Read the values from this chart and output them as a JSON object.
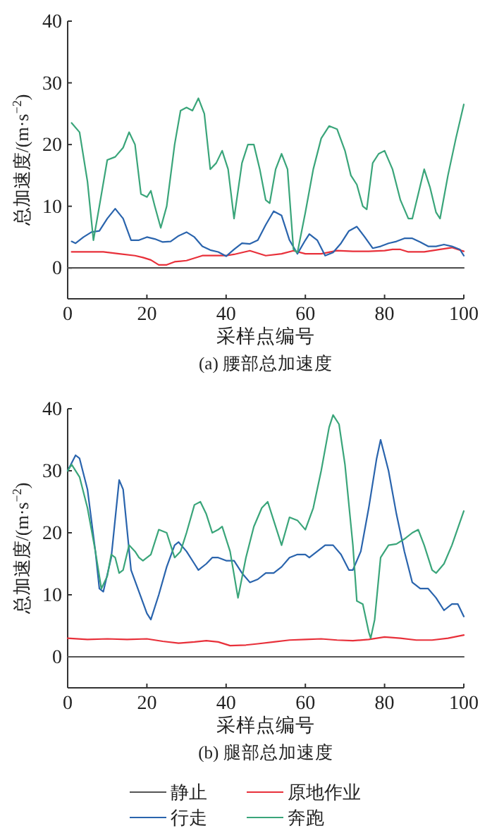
{
  "chart_data": [
    {
      "type": "line",
      "title": "(a) 腰部总加速度",
      "xlabel": "采样点编号",
      "ylabel": "总加速度/(m·s$^{−2}$)",
      "xlim": [
        0,
        100
      ],
      "xticks": [
        0,
        20,
        40,
        60,
        80,
        100
      ],
      "ylim": [
        -5,
        40
      ],
      "yticks": [
        0,
        10,
        20,
        30,
        40
      ],
      "legend": false,
      "series": [
        {
          "color": "#555555",
          "x": [
            0,
            25,
            50,
            75,
            100
          ],
          "values": [
            0,
            0,
            0,
            0,
            0
          ]
        },
        {
          "color": "#e8303a",
          "x": [
            1,
            5,
            9,
            13,
            17,
            19,
            21,
            23,
            25,
            27,
            30,
            34,
            38,
            40,
            42,
            46,
            50,
            54,
            57,
            60,
            64,
            68,
            72,
            76,
            80,
            82,
            84,
            86,
            90,
            94,
            97,
            100
          ],
          "values": [
            2.6,
            2.6,
            2.6,
            2.3,
            2,
            1.7,
            1.3,
            0.5,
            0.5,
            1,
            1.2,
            2,
            2,
            2,
            2.2,
            2.8,
            2,
            2.3,
            2.8,
            2.3,
            2.3,
            2.8,
            2.7,
            2.7,
            2.8,
            3,
            3,
            2.6,
            2.6,
            3,
            3.3,
            2.7
          ]
        },
        {
          "color": "#2a64ad",
          "x": [
            1,
            2,
            4,
            6,
            8,
            10,
            12,
            14,
            16,
            18,
            20,
            22,
            24,
            26,
            28,
            30,
            32,
            34,
            36,
            38,
            40,
            42,
            44,
            46,
            48,
            50,
            52,
            54,
            56,
            58,
            60,
            61,
            63,
            65,
            67,
            69,
            71,
            73,
            75,
            77,
            79,
            81,
            83,
            85,
            87,
            89,
            91,
            93,
            95,
            97,
            99,
            100
          ],
          "values": [
            4.3,
            4,
            5,
            5.8,
            6,
            8,
            9.6,
            8,
            4.5,
            4.5,
            5,
            4.7,
            4.2,
            4.3,
            5.2,
            5.8,
            5,
            3.5,
            2.9,
            2.6,
            1.9,
            3,
            4,
            3.9,
            4.5,
            7,
            9.2,
            8.5,
            4.5,
            2.3,
            4.5,
            5.5,
            4.5,
            2,
            2.5,
            4,
            6,
            6.7,
            5,
            3.2,
            3.5,
            4,
            4.3,
            4.8,
            4.8,
            4.2,
            3.5,
            3.5,
            3.8,
            3.5,
            3,
            2
          ]
        },
        {
          "color": "#3aa57a",
          "x": [
            1,
            3,
            5,
            6.5,
            8,
            10,
            12,
            14,
            15.5,
            17,
            18.5,
            20,
            21,
            22,
            23.5,
            25,
            27,
            28.5,
            30,
            31.5,
            33,
            34.5,
            36,
            37.5,
            39,
            40.5,
            42,
            44,
            45.5,
            47,
            48.5,
            50,
            51,
            52.5,
            54,
            55.5,
            57,
            58,
            60,
            62,
            64,
            66,
            68,
            70,
            71.5,
            73,
            74.5,
            75.5,
            77,
            78.5,
            80,
            82,
            84,
            86,
            87,
            88.5,
            90,
            91.5,
            93,
            94,
            96,
            98,
            100
          ],
          "values": [
            23.5,
            22,
            14,
            4.5,
            10,
            17.5,
            18,
            19.5,
            22,
            20,
            12,
            11.5,
            12.5,
            10,
            6.5,
            10,
            20,
            25.5,
            26,
            25.5,
            27.5,
            25,
            16,
            17,
            19,
            16,
            8,
            17,
            20,
            20,
            16,
            11,
            10.5,
            16,
            18.5,
            16,
            3,
            2.5,
            9,
            16,
            21,
            23,
            22.5,
            19,
            15,
            13.5,
            10,
            9.5,
            17,
            18.5,
            19,
            16,
            11,
            8,
            8,
            12,
            16,
            13,
            9,
            8,
            15,
            21,
            26.5
          ]
        }
      ]
    },
    {
      "type": "line",
      "title": "(b) 腿部总加速度",
      "xlabel": "采样点编号",
      "ylabel": "总加速度/(m·s$^{−2}$)",
      "xlim": [
        0,
        100
      ],
      "xticks": [
        0,
        20,
        40,
        60,
        80,
        100
      ],
      "ylim": [
        -5,
        40
      ],
      "yticks": [
        0,
        10,
        20,
        30,
        40
      ],
      "legend": "bottom",
      "series": [
        {
          "name": "静止",
          "color": "#555555",
          "x": [
            0,
            25,
            50,
            75,
            100
          ],
          "values": [
            0,
            0,
            0,
            0,
            0
          ]
        },
        {
          "name": "原地作业",
          "color": "#e8303a",
          "x": [
            0,
            5,
            10,
            15,
            20,
            24,
            28,
            32,
            35,
            38,
            41,
            45,
            48,
            52,
            56,
            60,
            64,
            68,
            72,
            76,
            80,
            84,
            88,
            92,
            96,
            100
          ],
          "values": [
            3,
            2.8,
            2.9,
            2.8,
            2.9,
            2.5,
            2.2,
            2.4,
            2.6,
            2.4,
            1.8,
            1.9,
            2.1,
            2.4,
            2.7,
            2.8,
            2.9,
            2.7,
            2.6,
            2.8,
            3.2,
            3,
            2.7,
            2.7,
            3,
            3.5
          ]
        },
        {
          "name": "行走",
          "color": "#2a64ad",
          "x": [
            0,
            2,
            3,
            5,
            7,
            8,
            9,
            11,
            13,
            14,
            16,
            18,
            20,
            21,
            23,
            25,
            27,
            28,
            30,
            32,
            33,
            35,
            36.5,
            38,
            40,
            42,
            44,
            46,
            48,
            50,
            52,
            54,
            56,
            58,
            60,
            61,
            63,
            65,
            67,
            69,
            71,
            72,
            74,
            76,
            78,
            79,
            81,
            83,
            85,
            87,
            89,
            91,
            93,
            95,
            97,
            98.5,
            100
          ],
          "values": [
            30,
            32.5,
            32,
            27,
            17,
            11,
            10.5,
            16,
            28.5,
            27,
            14,
            10.5,
            7,
            6,
            10,
            14.5,
            18,
            18.5,
            17,
            15,
            14,
            15,
            16,
            16,
            15.5,
            15.5,
            13.5,
            12,
            12.5,
            13.5,
            13.5,
            14.5,
            16,
            16.5,
            16.5,
            16,
            17,
            18,
            18,
            16.5,
            14,
            14,
            17,
            24,
            32,
            35,
            30,
            23,
            17,
            12,
            11,
            11,
            9.5,
            7.5,
            8.5,
            8.5,
            6.5
          ]
        },
        {
          "name": "奔跑",
          "color": "#3aa57a",
          "x": [
            0,
            1,
            3,
            5,
            7,
            8.5,
            10,
            11,
            12,
            13,
            14,
            15.5,
            17,
            18,
            19,
            21,
            23,
            25,
            27,
            28.5,
            30,
            32,
            33.5,
            35,
            36.5,
            38,
            39,
            41,
            43,
            45,
            47,
            49,
            50.5,
            52,
            54,
            56,
            58,
            60,
            62,
            64,
            66,
            67,
            68.5,
            70,
            72,
            73,
            74.5,
            76,
            76.5,
            77.5,
            79,
            81,
            83,
            85,
            87,
            88.5,
            90,
            92,
            93,
            95,
            97,
            100
          ],
          "values": [
            30,
            31,
            29,
            24,
            17,
            11,
            13,
            16.5,
            16,
            13.5,
            14,
            18,
            17,
            16,
            15.5,
            16.5,
            20.5,
            20,
            16,
            17,
            20,
            24.5,
            25,
            23,
            20,
            20.5,
            21,
            17,
            9.5,
            16,
            21,
            24,
            25,
            22,
            18,
            22.5,
            22,
            20.5,
            24,
            30,
            37,
            39,
            37.5,
            31,
            18,
            9,
            8.5,
            4,
            3,
            6,
            16,
            18,
            18.2,
            19,
            20,
            20.5,
            18,
            14,
            13.5,
            15,
            18,
            23.5
          ]
        }
      ]
    }
  ]
}
